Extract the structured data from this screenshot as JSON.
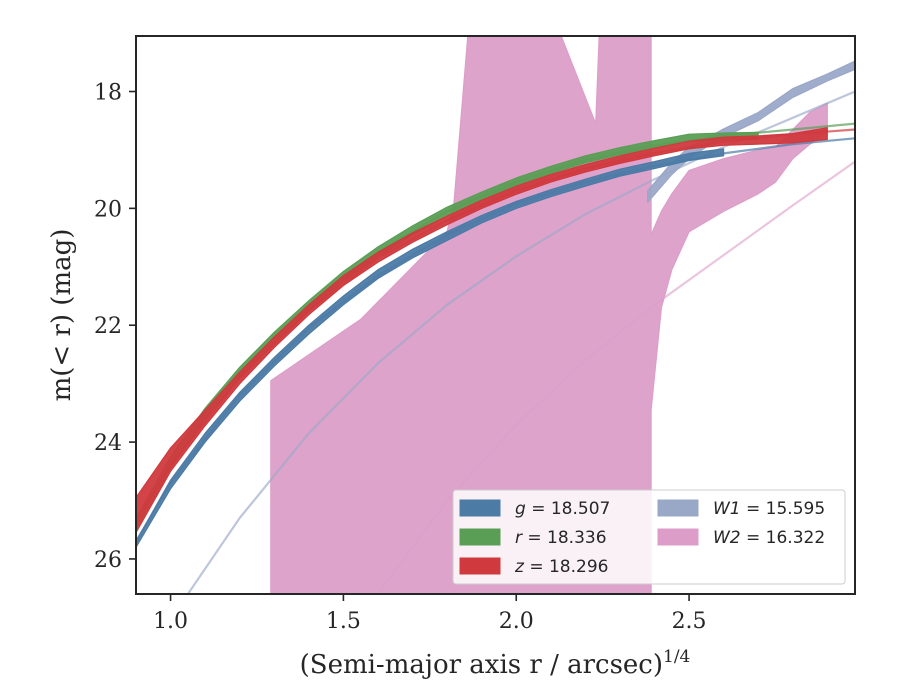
{
  "chart_data": {
    "type": "area",
    "xlabel": "(Semi-major axis r / arcsec)",
    "xlabel_superscript": "1/4",
    "ylabel": "m(< r) (mag)",
    "xlim": [
      0.9,
      2.98
    ],
    "ylim": [
      26.6,
      17.05
    ],
    "y_inverted": true,
    "grid": false,
    "legend_position": "lower-right",
    "x_ticks": [
      "1.0",
      "1.5",
      "2.0",
      "2.5"
    ],
    "y_ticks": [
      "18",
      "20",
      "22",
      "24",
      "26"
    ],
    "x_tick_values": [
      1.0,
      1.5,
      2.0,
      2.5
    ],
    "y_tick_values": [
      18,
      20,
      22,
      24,
      26
    ],
    "series": [
      {
        "key": "g",
        "name": "g = 18.507",
        "legend_var": "g",
        "legend_value": "18.507",
        "color": "#4c7ba6",
        "band": [
          [
            0.9,
            25.8,
            25.7
          ],
          [
            1.0,
            24.8,
            24.65
          ],
          [
            1.1,
            24.0,
            23.85
          ],
          [
            1.2,
            23.3,
            23.15
          ],
          [
            1.3,
            22.7,
            22.55
          ],
          [
            1.4,
            22.15,
            22.0
          ],
          [
            1.5,
            21.65,
            21.5
          ],
          [
            1.6,
            21.2,
            21.05
          ],
          [
            1.7,
            20.85,
            20.7
          ],
          [
            1.8,
            20.55,
            20.4
          ],
          [
            1.9,
            20.25,
            20.12
          ],
          [
            2.0,
            20.0,
            19.88
          ],
          [
            2.1,
            19.8,
            19.68
          ],
          [
            2.2,
            19.62,
            19.5
          ],
          [
            2.3,
            19.45,
            19.33
          ],
          [
            2.4,
            19.32,
            19.2
          ],
          [
            2.5,
            19.18,
            19.06
          ],
          [
            2.6,
            19.1,
            18.98
          ]
        ],
        "model": [
          [
            0.9,
            25.7
          ],
          [
            1.0,
            24.7
          ],
          [
            1.2,
            23.2
          ],
          [
            1.4,
            22.05
          ],
          [
            1.6,
            21.15
          ],
          [
            1.8,
            20.45
          ],
          [
            2.0,
            19.92
          ],
          [
            2.2,
            19.55
          ],
          [
            2.4,
            19.27
          ],
          [
            2.6,
            19.06
          ],
          [
            2.8,
            18.9
          ],
          [
            2.98,
            18.8
          ]
        ],
        "model_opacity": 0.7
      },
      {
        "key": "r",
        "name": "r = 18.336",
        "legend_var": "r",
        "legend_value": "18.336",
        "color": "#5a9e55",
        "band": [
          [
            0.9,
            25.5,
            25.3
          ],
          [
            1.0,
            24.45,
            24.25
          ],
          [
            1.1,
            23.6,
            23.42
          ],
          [
            1.2,
            22.9,
            22.72
          ],
          [
            1.3,
            22.3,
            22.12
          ],
          [
            1.4,
            21.75,
            21.58
          ],
          [
            1.5,
            21.25,
            21.08
          ],
          [
            1.6,
            20.82,
            20.66
          ],
          [
            1.7,
            20.45,
            20.3
          ],
          [
            1.8,
            20.13,
            19.98
          ],
          [
            1.9,
            19.85,
            19.72
          ],
          [
            2.0,
            19.6,
            19.48
          ],
          [
            2.1,
            19.4,
            19.28
          ],
          [
            2.2,
            19.22,
            19.1
          ],
          [
            2.3,
            19.08,
            18.96
          ],
          [
            2.4,
            18.96,
            18.84
          ],
          [
            2.5,
            18.85,
            18.73
          ],
          [
            2.6,
            18.83,
            18.71
          ],
          [
            2.7,
            18.82,
            18.7
          ]
        ],
        "model": [
          [
            0.9,
            25.4
          ],
          [
            1.0,
            24.35
          ],
          [
            1.2,
            22.8
          ],
          [
            1.4,
            21.65
          ],
          [
            1.6,
            20.75
          ],
          [
            1.8,
            20.05
          ],
          [
            2.0,
            19.55
          ],
          [
            2.2,
            19.17
          ],
          [
            2.4,
            18.92
          ],
          [
            2.6,
            18.76
          ],
          [
            2.8,
            18.65
          ],
          [
            2.98,
            18.55
          ]
        ],
        "model_opacity": 0.7
      },
      {
        "key": "z",
        "name": "z = 18.296",
        "legend_var": "z",
        "legend_value": "18.296",
        "color": "#d03a3e",
        "band": [
          [
            0.9,
            25.55,
            24.95
          ],
          [
            1.0,
            24.5,
            24.1
          ],
          [
            1.1,
            23.72,
            23.45
          ],
          [
            1.2,
            23.0,
            22.8
          ],
          [
            1.3,
            22.38,
            22.2
          ],
          [
            1.4,
            21.82,
            21.65
          ],
          [
            1.5,
            21.32,
            21.15
          ],
          [
            1.6,
            20.92,
            20.75
          ],
          [
            1.7,
            20.58,
            20.42
          ],
          [
            1.8,
            20.28,
            20.13
          ],
          [
            1.9,
            20.0,
            19.86
          ],
          [
            2.0,
            19.76,
            19.62
          ],
          [
            2.1,
            19.55,
            19.42
          ],
          [
            2.2,
            19.38,
            19.25
          ],
          [
            2.3,
            19.23,
            19.1
          ],
          [
            2.4,
            19.1,
            18.97
          ],
          [
            2.5,
            18.98,
            18.85
          ],
          [
            2.6,
            18.92,
            18.78
          ],
          [
            2.7,
            18.9,
            18.76
          ],
          [
            2.8,
            18.88,
            18.72
          ],
          [
            2.9,
            18.82,
            18.62
          ]
        ],
        "model": [
          [
            0.9,
            25.35
          ],
          [
            1.0,
            24.4
          ],
          [
            1.2,
            22.9
          ],
          [
            1.4,
            21.75
          ],
          [
            1.6,
            20.85
          ],
          [
            1.8,
            20.2
          ],
          [
            2.0,
            19.7
          ],
          [
            2.2,
            19.32
          ],
          [
            2.4,
            19.05
          ],
          [
            2.6,
            18.86
          ],
          [
            2.8,
            18.73
          ],
          [
            2.98,
            18.65
          ]
        ],
        "model_opacity": 0.7
      },
      {
        "key": "W1",
        "name": "W1 = 15.595",
        "legend_var": "W1",
        "legend_value": "15.595",
        "color": "#9aa8c8",
        "band": [
          [
            2.38,
            19.9,
            19.7
          ],
          [
            2.45,
            19.42,
            19.22
          ],
          [
            2.5,
            19.15,
            18.95
          ],
          [
            2.55,
            18.95,
            18.8
          ],
          [
            2.6,
            18.78,
            18.64
          ],
          [
            2.7,
            18.5,
            18.36
          ],
          [
            2.8,
            18.1,
            17.95
          ],
          [
            2.9,
            17.82,
            17.7
          ],
          [
            2.98,
            17.62,
            17.48
          ]
        ],
        "model": [
          [
            1.05,
            26.6
          ],
          [
            1.2,
            25.3
          ],
          [
            1.4,
            23.85
          ],
          [
            1.6,
            22.65
          ],
          [
            1.8,
            21.65
          ],
          [
            2.0,
            20.82
          ],
          [
            2.2,
            20.1
          ],
          [
            2.4,
            19.5
          ],
          [
            2.6,
            18.95
          ],
          [
            2.8,
            18.45
          ],
          [
            2.98,
            18.0
          ]
        ],
        "model_opacity": 0.65
      },
      {
        "key": "W2",
        "name": "W2 = 16.322",
        "legend_var": "W2",
        "legend_value": "16.322",
        "color": "#dc9ec8",
        "band": [
          [
            1.29,
            26.6,
            22.95
          ],
          [
            1.5,
            26.6,
            22.1
          ],
          [
            1.55,
            26.6,
            21.9
          ],
          [
            1.8,
            26.6,
            20.4
          ],
          [
            1.82,
            26.6,
            19.9
          ],
          [
            1.86,
            26.6,
            17.05
          ],
          [
            2.13,
            26.6,
            17.05
          ],
          [
            2.23,
            26.6,
            18.55
          ],
          [
            2.24,
            26.6,
            17.05
          ],
          [
            2.39,
            26.6,
            17.05
          ],
          [
            2.39,
            23.45,
            20.45
          ],
          [
            2.42,
            21.7,
            20.05
          ],
          [
            2.45,
            21.05,
            19.75
          ],
          [
            2.5,
            20.4,
            19.35
          ],
          [
            2.6,
            20.05,
            19.15
          ],
          [
            2.7,
            19.75,
            19.0
          ],
          [
            2.75,
            19.55,
            18.95
          ],
          [
            2.8,
            19.15,
            18.65
          ],
          [
            2.85,
            18.9,
            18.35
          ],
          [
            2.9,
            18.7,
            18.2
          ]
        ],
        "model": [
          [
            1.6,
            26.6
          ],
          [
            1.8,
            25.0
          ],
          [
            2.0,
            23.7
          ],
          [
            2.2,
            22.6
          ],
          [
            2.4,
            21.65
          ],
          [
            2.6,
            20.8
          ],
          [
            2.8,
            19.95
          ],
          [
            2.98,
            19.2
          ]
        ],
        "model_opacity": 0.6
      }
    ],
    "legend_order": [
      "g",
      "W1",
      "r",
      "W2",
      "z"
    ]
  }
}
